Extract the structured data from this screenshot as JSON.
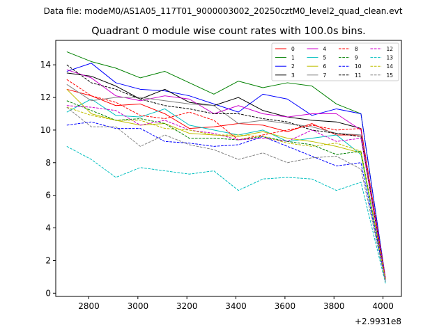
{
  "suptitle": "Data file: modeM0/AS1A05_117T01_9000003002_20250cztM0_level2_quad_clean.evt",
  "chart_data": {
    "type": "line",
    "title": "Quadrant 0 module wise count rates with 100.0s bins.",
    "xlabel": "",
    "ylabel": "",
    "x_offset_label": "+2.9931e8",
    "xlim": [
      2665,
      4075
    ],
    "ylim": [
      -0.2,
      15.5
    ],
    "x": [
      2710,
      2810,
      2910,
      3010,
      3110,
      3210,
      3310,
      3410,
      3510,
      3610,
      3710,
      3810,
      3910,
      4010
    ],
    "x_ticks": [
      2800,
      3000,
      3200,
      3400,
      3600,
      3800,
      4000
    ],
    "x_tick_labels": [
      "2800",
      "3000",
      "3200",
      "3400",
      "3600",
      "3800",
      "4000"
    ],
    "y_ticks": [
      0,
      2,
      4,
      6,
      8,
      10,
      12,
      14
    ],
    "y_tick_labels": [
      "0",
      "2",
      "4",
      "6",
      "8",
      "10",
      "12",
      "14"
    ],
    "legend_position": "upper-right",
    "legend_columns": 4,
    "series": [
      {
        "name": "0",
        "color": "#ff0000",
        "dash": "solid",
        "values": [
          12.5,
          12.1,
          11.5,
          11.6,
          11.0,
          10.1,
          10.2,
          10.4,
          10.3,
          9.9,
          10.4,
          9.7,
          9.7,
          0.9
        ]
      },
      {
        "name": "1",
        "color": "#008000",
        "dash": "solid",
        "values": [
          14.8,
          14.2,
          13.8,
          13.2,
          13.6,
          12.9,
          12.2,
          13.0,
          12.6,
          12.9,
          12.7,
          11.6,
          11.0,
          0.9
        ]
      },
      {
        "name": "2",
        "color": "#0000ff",
        "dash": "solid",
        "values": [
          13.6,
          14.1,
          12.9,
          12.5,
          12.4,
          12.1,
          11.6,
          11.1,
          12.2,
          11.9,
          10.9,
          11.3,
          11.0,
          0.9
        ]
      },
      {
        "name": "3",
        "color": "#000000",
        "dash": "solid",
        "values": [
          13.5,
          13.3,
          12.7,
          11.9,
          12.5,
          11.7,
          11.5,
          12.0,
          11.2,
          10.8,
          10.6,
          10.5,
          10.1,
          0.8
        ]
      },
      {
        "name": "4",
        "color": "#cc00cc",
        "dash": "solid",
        "values": [
          13.7,
          13.2,
          12.1,
          11.8,
          12.1,
          11.9,
          11.0,
          11.5,
          11.0,
          10.8,
          11.0,
          11.0,
          10.0,
          0.9
        ]
      },
      {
        "name": "5",
        "color": "#00bfbf",
        "dash": "solid",
        "values": [
          11.1,
          11.9,
          10.9,
          10.8,
          11.3,
          10.3,
          10.0,
          9.7,
          10.0,
          9.3,
          9.5,
          9.7,
          8.5,
          0.7
        ]
      },
      {
        "name": "6",
        "color": "#bfbf00",
        "dash": "solid",
        "values": [
          12.5,
          11.0,
          10.6,
          10.3,
          10.4,
          9.8,
          9.7,
          9.6,
          9.9,
          9.5,
          9.3,
          9.0,
          8.6,
          0.8
        ]
      },
      {
        "name": "7",
        "color": "#808080",
        "dash": "solid",
        "values": [
          12.8,
          11.8,
          12.0,
          12.0,
          11.8,
          11.6,
          11.5,
          10.4,
          10.6,
          10.4,
          10.2,
          9.8,
          9.7,
          0.8
        ]
      },
      {
        "name": "8",
        "color": "#ff0000",
        "dash": "dashed",
        "values": [
          13.1,
          12.1,
          11.7,
          10.9,
          10.7,
          11.1,
          10.6,
          9.4,
          9.7,
          10.0,
          10.3,
          10.0,
          10.1,
          0.9
        ]
      },
      {
        "name": "9",
        "color": "#008000",
        "dash": "dashed",
        "values": [
          11.8,
          11.2,
          10.6,
          10.7,
          10.4,
          9.5,
          9.5,
          9.4,
          9.6,
          9.3,
          9.1,
          8.5,
          8.7,
          0.8
        ]
      },
      {
        "name": "10",
        "color": "#0000ff",
        "dash": "dashed",
        "values": [
          10.3,
          10.5,
          10.1,
          10.1,
          9.3,
          9.2,
          9.0,
          9.1,
          9.6,
          9.0,
          8.4,
          7.8,
          8.0,
          0.8
        ]
      },
      {
        "name": "11",
        "color": "#000000",
        "dash": "dashed",
        "values": [
          14.0,
          12.9,
          12.5,
          11.9,
          11.5,
          11.3,
          11.0,
          11.0,
          10.7,
          10.5,
          10.0,
          9.8,
          9.6,
          0.8
        ]
      },
      {
        "name": "12",
        "color": "#cc00cc",
        "dash": "dashed",
        "values": [
          11.5,
          11.4,
          11.2,
          10.3,
          10.6,
          10.0,
          9.8,
          9.4,
          9.5,
          9.3,
          10.0,
          9.3,
          9.5,
          0.8
        ]
      },
      {
        "name": "13",
        "color": "#00bfbf",
        "dash": "dashed",
        "values": [
          9.0,
          8.2,
          7.1,
          7.7,
          7.5,
          7.3,
          7.5,
          6.3,
          7.0,
          7.1,
          7.0,
          6.3,
          6.8,
          0.6
        ]
      },
      {
        "name": "14",
        "color": "#bfbf00",
        "dash": "dashed",
        "values": [
          11.4,
          10.9,
          10.6,
          10.6,
          10.1,
          10.0,
          9.7,
          9.7,
          9.6,
          9.2,
          9.0,
          9.2,
          8.7,
          0.8
        ]
      },
      {
        "name": "15",
        "color": "#808080",
        "dash": "dashed",
        "values": [
          11.4,
          10.2,
          10.2,
          9.0,
          9.7,
          9.1,
          8.8,
          8.2,
          8.6,
          8.0,
          8.3,
          8.4,
          7.6,
          0.7
        ]
      }
    ]
  }
}
